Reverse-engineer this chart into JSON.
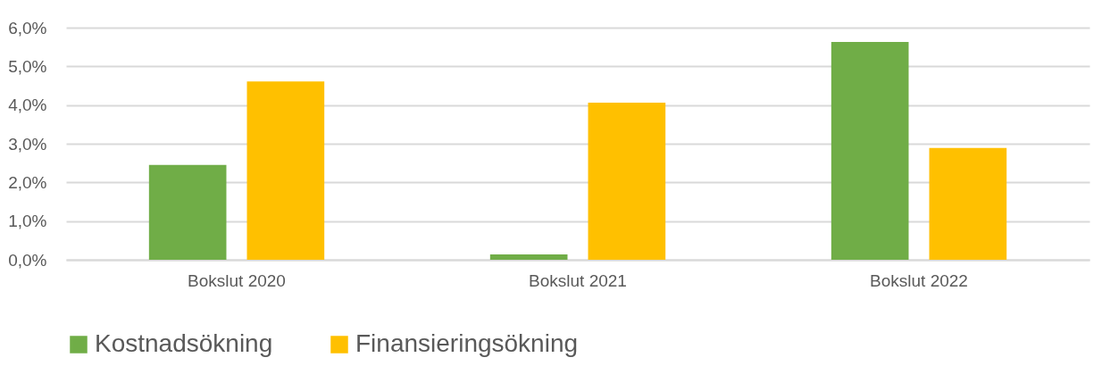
{
  "chart_data": {
    "type": "bar",
    "categories": [
      "Bokslut 2020",
      "Bokslut 2021",
      "Bokslut 2022"
    ],
    "series": [
      {
        "name": "Kostnadsökning",
        "color": "#70ad47",
        "values": [
          2.45,
          0.14,
          5.63
        ]
      },
      {
        "name": "Finansieringsökning",
        "color": "#ffc000",
        "values": [
          4.61,
          4.06,
          2.89
        ]
      }
    ],
    "ylim": [
      0,
      6
    ],
    "yticks": [
      {
        "value": 0,
        "label": "0,0%"
      },
      {
        "value": 1,
        "label": "1,0%"
      },
      {
        "value": 2,
        "label": "2,0%"
      },
      {
        "value": 3,
        "label": "3,0%"
      },
      {
        "value": 4,
        "label": "4,0%"
      },
      {
        "value": 5,
        "label": "5,0%"
      },
      {
        "value": 6,
        "label": "6,0%"
      }
    ],
    "grid": "y",
    "legend": "bottom"
  }
}
